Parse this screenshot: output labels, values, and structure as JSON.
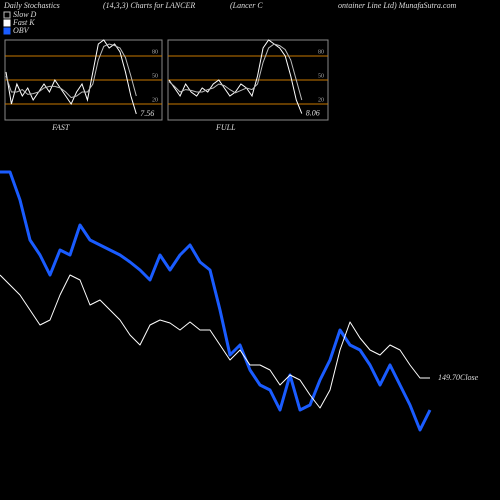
{
  "header": [
    "Daily Stochastics",
    "(14,3,3) Charts for LANCER",
    "(Lancer C",
    "ontainer Line Ltd) MunafaSutra.com"
  ],
  "chart_data": [
    {
      "type": "line",
      "title": "FAST",
      "ylim": [
        0,
        100
      ],
      "yticks": [
        20,
        50,
        80
      ],
      "grid_color": "#c77700",
      "series": [
        {
          "name": "Fast K",
          "color": "#ffffff",
          "values": [
            60,
            20,
            45,
            30,
            40,
            25,
            35,
            45,
            35,
            50,
            40,
            30,
            20,
            35,
            45,
            25,
            60,
            95,
            100,
            90,
            95,
            85,
            60,
            30,
            7.56
          ]
        },
        {
          "name": "Slow D",
          "color": "#bbbbbb",
          "values": [
            55,
            35,
            35,
            38,
            32,
            33,
            35,
            40,
            42,
            42,
            40,
            35,
            28,
            30,
            35,
            35,
            45,
            75,
            92,
            95,
            93,
            90,
            78,
            55,
            30
          ]
        }
      ]
    },
    {
      "type": "line",
      "title": "FULL",
      "ylim": [
        0,
        100
      ],
      "yticks": [
        20,
        50,
        80
      ],
      "grid_color": "#c77700",
      "series": [
        {
          "name": "Fast K",
          "color": "#ffffff",
          "values": [
            50,
            40,
            30,
            45,
            35,
            30,
            40,
            35,
            45,
            50,
            40,
            30,
            35,
            45,
            40,
            30,
            55,
            90,
            100,
            95,
            90,
            80,
            55,
            25,
            8.06
          ]
        },
        {
          "name": "Slow D",
          "color": "#bbbbbb",
          "values": [
            48,
            42,
            35,
            38,
            37,
            35,
            35,
            38,
            40,
            45,
            43,
            38,
            34,
            37,
            40,
            38,
            45,
            72,
            90,
            95,
            93,
            88,
            75,
            50,
            25
          ]
        }
      ]
    },
    {
      "type": "line",
      "ylim": [
        128.1,
        218.1
      ],
      "y2lim": [
        50,
        350
      ],
      "series": [
        {
          "name": "Close",
          "color": "#ffffff",
          "values": [
            180.6,
            177.6,
            174.6,
            170.1,
            165.6,
            167.1,
            174.6,
            180.6,
            179.1,
            171.6,
            173.1,
            170.1,
            167.1,
            162.6,
            159.6,
            165.6,
            167.1,
            166.2,
            164.1,
            166.5,
            164.1,
            164.1,
            159.6,
            155.1,
            158.1,
            153.6,
            153.6,
            152.1,
            147.6,
            150.6,
            149.1,
            144.6,
            140.7,
            146.1,
            158.1,
            166.5,
            161.7,
            158.1,
            156.6,
            159.6,
            158.1,
            153.6,
            149.7,
            149.7
          ],
          "value_labels": [
            null,
            null,
            null,
            null,
            null,
            null,
            null,
            null,
            null,
            null,
            null,
            null,
            null,
            null,
            null,
            null,
            null,
            null,
            null,
            null,
            null,
            null,
            null,
            null,
            null,
            null,
            null,
            null,
            null,
            null,
            null,
            null,
            null,
            null,
            null,
            null,
            null,
            null,
            null,
            null,
            null,
            null,
            null,
            "149.70"
          ]
        },
        {
          "name": "OBV",
          "color": "#1a5cff",
          "axis": "y2",
          "values": [
            328,
            328,
            300,
            260,
            245,
            225,
            250,
            245,
            275,
            260,
            255,
            250,
            245,
            238,
            230,
            220,
            245,
            230,
            245,
            255,
            238,
            230,
            190,
            145,
            155,
            130,
            115,
            110,
            90,
            125,
            90,
            95,
            120,
            140,
            170,
            155,
            150,
            135,
            115,
            135,
            115,
            95,
            70,
            90
          ]
        }
      ]
    }
  ]
}
